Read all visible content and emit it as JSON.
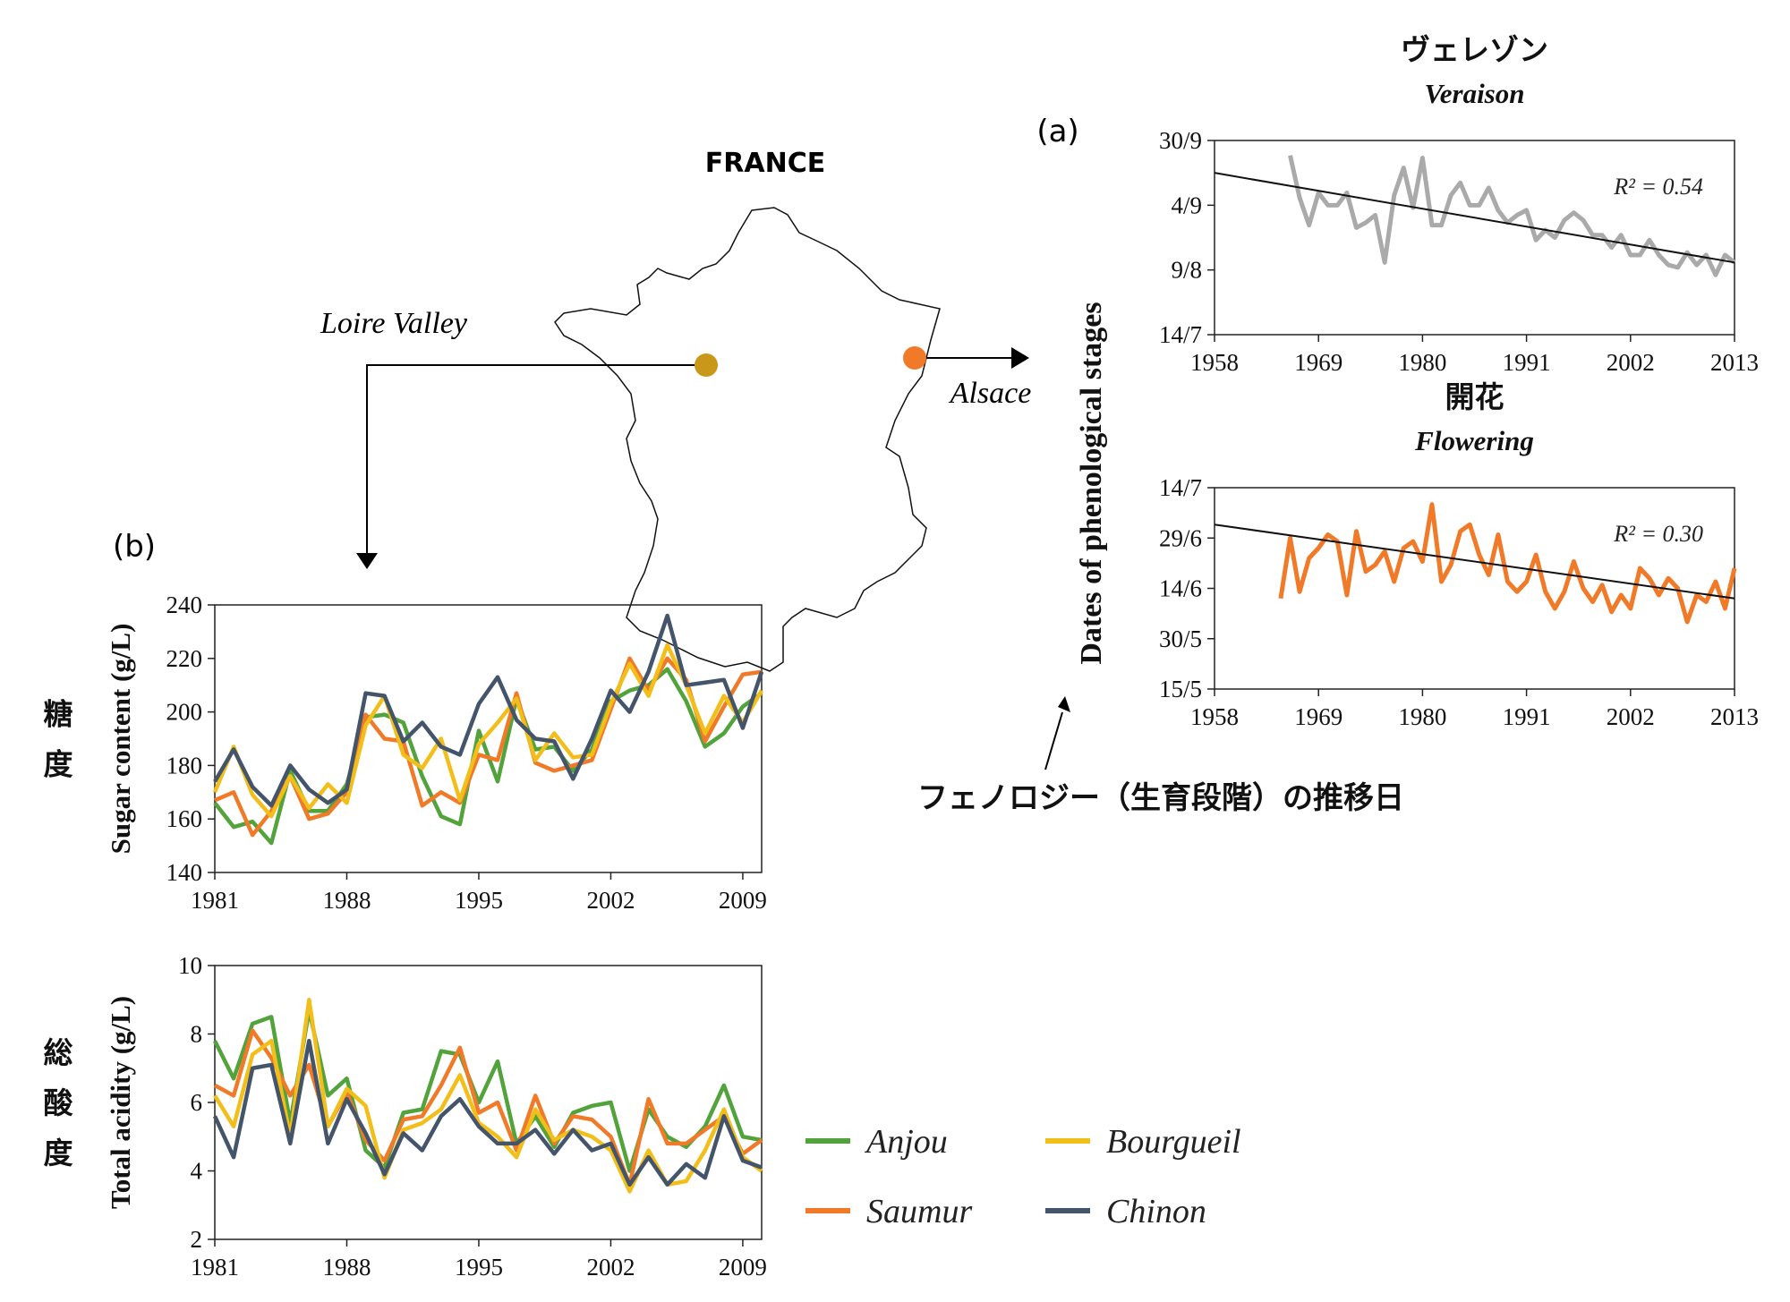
{
  "map": {
    "title": "FRANCE",
    "loire_label": "Loire Valley",
    "alsace_label": "Alsace",
    "loire_marker_color": "#C9971A",
    "alsace_marker_color": "#F07A28"
  },
  "panel_a": {
    "tag": "(a)",
    "ylabel": "Dates of phenological stages",
    "annotation": "フェノロジー（生育段階）の推移日"
  },
  "panel_b": {
    "tag": "(b)"
  },
  "legend": [
    {
      "name": "Anjou",
      "color": "#52A33B"
    },
    {
      "name": "Bourgueil",
      "color": "#F2BE1A"
    },
    {
      "name": "Saumur",
      "color": "#F07A28"
    },
    {
      "name": "Chinon",
      "color": "#44546A"
    }
  ],
  "chart_data": [
    {
      "id": "veraison",
      "type": "line",
      "title_jp": "ヴェレゾン",
      "title": "Veraison",
      "r2": "R² = 0.54",
      "color": "#AAAAAA",
      "ylabel": "Dates of phenological stages",
      "xlim": [
        1958,
        2013
      ],
      "ylim": [
        0,
        78
      ],
      "ytick_values": [
        0,
        26,
        52,
        78
      ],
      "ytick_labels": [
        "14/7",
        "9/8",
        "4/9",
        "30/9"
      ],
      "xticks": [
        1958,
        1969,
        1980,
        1991,
        2002,
        2013
      ],
      "x": [
        1966,
        1967,
        1968,
        1969,
        1970,
        1971,
        1972,
        1973,
        1974,
        1975,
        1976,
        1977,
        1978,
        1979,
        1980,
        1981,
        1982,
        1983,
        1984,
        1985,
        1986,
        1987,
        1988,
        1989,
        1990,
        1991,
        1992,
        1993,
        1994,
        1995,
        1996,
        1997,
        1998,
        1999,
        2000,
        2001,
        2002,
        2003,
        2004,
        2005,
        2006,
        2007,
        2008,
        2009,
        2010,
        2011,
        2012,
        2013
      ],
      "y": [
        72,
        55,
        44,
        57,
        52,
        52,
        57,
        43,
        45,
        48,
        29,
        56,
        67,
        51,
        71,
        44,
        44,
        56,
        61,
        52,
        52,
        59,
        50,
        45,
        48,
        50,
        38,
        42,
        39,
        46,
        49,
        46,
        40,
        40,
        35,
        40,
        32,
        32,
        38,
        32,
        28,
        27,
        33,
        28,
        32,
        24,
        32,
        29
      ],
      "trend": [
        [
          1958,
          65
        ],
        [
          2013,
          29
        ]
      ]
    },
    {
      "id": "flowering",
      "type": "line",
      "title_jp": "開花",
      "title": "Flowering",
      "r2": "R² = 0.30",
      "color": "#F07A28",
      "xlim": [
        1958,
        2013
      ],
      "ylim": [
        0,
        60
      ],
      "ytick_values": [
        0,
        15,
        30,
        45,
        60
      ],
      "ytick_labels": [
        "15/5",
        "30/5",
        "14/6",
        "29/6",
        "14/7"
      ],
      "xticks": [
        1958,
        1969,
        1980,
        1991,
        2002,
        2013
      ],
      "x": [
        1965,
        1966,
        1967,
        1968,
        1969,
        1970,
        1971,
        1972,
        1973,
        1974,
        1975,
        1976,
        1977,
        1978,
        1979,
        1980,
        1981,
        1982,
        1983,
        1984,
        1985,
        1986,
        1987,
        1988,
        1989,
        1990,
        1991,
        1992,
        1993,
        1994,
        1995,
        1996,
        1997,
        1998,
        1999,
        2000,
        2001,
        2002,
        2003,
        2004,
        2005,
        2006,
        2007,
        2008,
        2009,
        2010,
        2011,
        2012,
        2013
      ],
      "y": [
        27,
        45,
        29,
        39,
        42,
        46,
        44,
        28,
        47,
        35,
        37,
        41,
        32,
        42,
        44,
        38,
        55,
        32,
        37,
        47,
        49,
        40,
        34,
        46,
        32,
        29,
        32,
        40,
        29,
        24,
        29,
        38,
        30,
        26,
        31,
        23,
        28,
        24,
        36,
        33,
        28,
        33,
        30,
        20,
        28,
        26,
        32,
        24,
        36
      ],
      "trend": [
        [
          1958,
          49
        ],
        [
          2013,
          27
        ]
      ]
    },
    {
      "id": "sugar",
      "type": "line",
      "ylabel": "Sugar content (g/L)",
      "ylabel_jp": "糖度",
      "xlim": [
        1981,
        2010
      ],
      "ylim": [
        140,
        240
      ],
      "yticks": [
        140,
        160,
        180,
        200,
        220,
        240
      ],
      "xticks": [
        1981,
        1988,
        1995,
        2002,
        2009
      ],
      "x": [
        1981,
        1982,
        1983,
        1984,
        1985,
        1986,
        1987,
        1988,
        1989,
        1990,
        1991,
        1992,
        1993,
        1994,
        1995,
        1996,
        1997,
        1998,
        1999,
        2000,
        2001,
        2002,
        2003,
        2004,
        2005,
        2006,
        2007,
        2008,
        2009,
        2010
      ],
      "series": [
        {
          "name": "Anjou",
          "values": [
            166,
            157,
            159,
            151,
            178,
            163,
            163,
            173,
            198,
            199,
            196,
            176,
            161,
            158,
            193,
            174,
            205,
            186,
            187,
            178,
            186,
            204,
            208,
            210,
            216,
            204,
            187,
            192,
            202,
            207
          ]
        },
        {
          "name": "Saumur",
          "values": [
            167,
            170,
            154,
            163,
            176,
            160,
            162,
            170,
            199,
            190,
            189,
            165,
            170,
            166,
            184,
            182,
            207,
            181,
            178,
            180,
            182,
            201,
            220,
            208,
            220,
            212,
            189,
            202,
            214,
            215
          ]
        },
        {
          "name": "Bourgueil",
          "values": [
            170,
            187,
            169,
            161,
            176,
            164,
            173,
            166,
            195,
            206,
            184,
            179,
            190,
            167,
            188,
            196,
            205,
            182,
            192,
            183,
            184,
            203,
            218,
            206,
            225,
            210,
            192,
            206,
            196,
            208
          ]
        },
        {
          "name": "Chinon",
          "values": [
            174,
            186,
            172,
            165,
            180,
            171,
            166,
            171,
            207,
            206,
            189,
            196,
            187,
            184,
            203,
            213,
            197,
            190,
            189,
            175,
            190,
            208,
            200,
            215,
            236,
            210,
            211,
            212,
            194,
            215
          ]
        }
      ]
    },
    {
      "id": "acidity",
      "type": "line",
      "ylabel": "Total acidity (g/L)",
      "ylabel_jp": "総酸度",
      "xlim": [
        1981,
        2010
      ],
      "ylim": [
        2,
        10
      ],
      "yticks": [
        2,
        4,
        6,
        8,
        10
      ],
      "xticks": [
        1981,
        1988,
        1995,
        2002,
        2009
      ],
      "x": [
        1981,
        1982,
        1983,
        1984,
        1985,
        1986,
        1987,
        1988,
        1989,
        1990,
        1991,
        1992,
        1993,
        1994,
        1995,
        1996,
        1997,
        1998,
        1999,
        2000,
        2001,
        2002,
        2003,
        2004,
        2005,
        2006,
        2007,
        2008,
        2009,
        2010
      ],
      "series": [
        {
          "name": "Anjou",
          "values": [
            7.8,
            6.7,
            8.3,
            8.5,
            5.4,
            8.7,
            6.2,
            6.7,
            4.6,
            4.1,
            5.7,
            5.8,
            7.5,
            7.4,
            6.0,
            7.2,
            4.8,
            5.6,
            4.7,
            5.7,
            5.9,
            6.0,
            4.0,
            5.8,
            5.0,
            4.7,
            5.3,
            6.5,
            5.0,
            4.9
          ]
        },
        {
          "name": "Saumur",
          "values": [
            6.5,
            6.2,
            8.1,
            7.3,
            6.2,
            7.1,
            5.3,
            6.3,
            4.9,
            4.3,
            5.5,
            5.6,
            6.5,
            7.6,
            5.7,
            6.0,
            4.6,
            6.2,
            4.8,
            5.6,
            5.5,
            5.0,
            3.6,
            6.1,
            4.8,
            4.8,
            5.2,
            5.6,
            4.5,
            4.9
          ]
        },
        {
          "name": "Bourgueil",
          "values": [
            6.2,
            5.3,
            7.4,
            7.8,
            5.0,
            9.0,
            5.3,
            6.4,
            5.9,
            3.8,
            5.2,
            5.4,
            5.8,
            6.8,
            5.4,
            5.0,
            4.4,
            5.8,
            4.9,
            5.2,
            5.0,
            4.6,
            3.4,
            4.6,
            3.6,
            3.7,
            4.6,
            5.8,
            4.4,
            4.0
          ]
        },
        {
          "name": "Chinon",
          "values": [
            5.6,
            4.4,
            7.0,
            7.1,
            4.8,
            7.8,
            4.8,
            6.1,
            5.1,
            3.9,
            5.1,
            4.6,
            5.6,
            6.1,
            5.3,
            4.8,
            4.8,
            5.2,
            4.5,
            5.2,
            4.6,
            4.8,
            3.6,
            4.4,
            3.6,
            4.2,
            3.8,
            5.6,
            4.3,
            4.1
          ]
        }
      ]
    }
  ]
}
